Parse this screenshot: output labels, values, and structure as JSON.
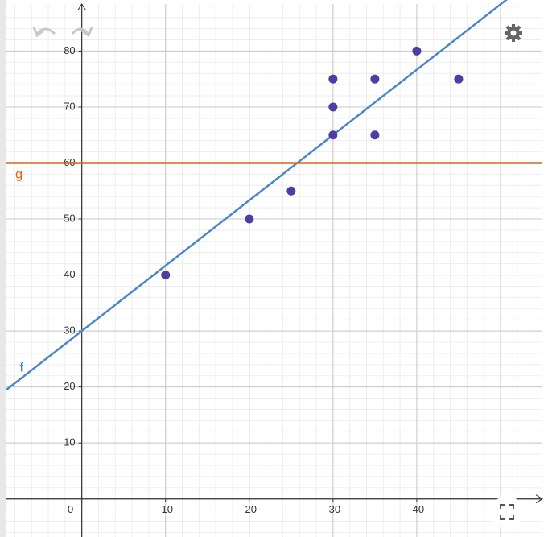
{
  "chart_data": {
    "type": "scatter",
    "x": [
      10,
      20,
      25,
      30,
      30,
      30,
      35,
      35,
      40,
      45
    ],
    "series": [
      {
        "color": "#4c3ea3",
        "values": [
          40,
          50,
          55,
          65,
          70,
          75,
          65,
          75,
          80,
          75
        ]
      }
    ],
    "lines": [
      {
        "name": "f",
        "color": "#4a87c9",
        "slope": 1.1667,
        "intercept": 30
      },
      {
        "name": "g",
        "color": "#d5661c",
        "slope": 0,
        "intercept": 60
      }
    ],
    "xlim": [
      -9,
      55
    ],
    "ylim": [
      -6.8,
      88.4
    ],
    "xticks": [
      0,
      10,
      20,
      30,
      40
    ],
    "yticks": [
      10,
      20,
      30,
      40,
      50,
      60,
      70,
      80
    ],
    "grid": true,
    "minor_divisions": 5
  }
}
